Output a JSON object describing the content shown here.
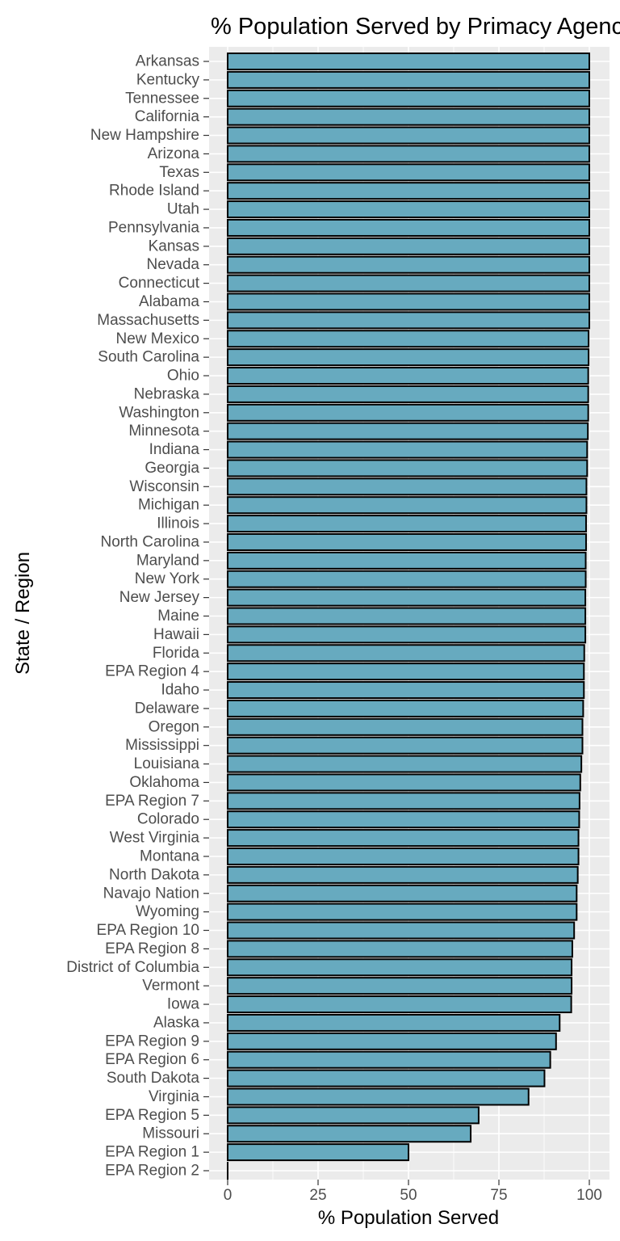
{
  "chart_data": {
    "type": "bar",
    "orientation": "horizontal",
    "title": "% Population Served by Primacy Agency",
    "xlabel": "% Population Served",
    "ylabel": "State / Region",
    "xlim": [
      -2.5,
      105
    ],
    "xticks": [
      0,
      25,
      50,
      75,
      100
    ],
    "grid": true,
    "legend": "none",
    "colors": {
      "bar_fill": "#67aabf",
      "bar_stroke": "#000000",
      "panel_bg": "#ebebeb",
      "grid": "#ffffff"
    },
    "categories": [
      "Arkansas",
      "Kentucky",
      "Tennessee",
      "California",
      "New Hampshire",
      "Arizona",
      "Texas",
      "Rhode Island",
      "Utah",
      "Pennsylvania",
      "Kansas",
      "Nevada",
      "Connecticut",
      "Alabama",
      "Massachusetts",
      "New Mexico",
      "South Carolina",
      "Ohio",
      "Nebraska",
      "Washington",
      "Minnesota",
      "Indiana",
      "Georgia",
      "Wisconsin",
      "Michigan",
      "Illinois",
      "North Carolina",
      "Maryland",
      "New York",
      "New Jersey",
      "Maine",
      "Hawaii",
      "Florida",
      "EPA Region 4",
      "Idaho",
      "Delaware",
      "Oregon",
      "Mississippi",
      "Louisiana",
      "Oklahoma",
      "EPA Region 7",
      "Colorado",
      "West Virginia",
      "Montana",
      "North Dakota",
      "Navajo Nation",
      "Wyoming",
      "EPA Region 10",
      "EPA Region 8",
      "District of Columbia",
      "Vermont",
      "Iowa",
      "Alaska",
      "EPA Region 9",
      "EPA Region 6",
      "South Dakota",
      "Virginia",
      "EPA Region 5",
      "Missouri",
      "EPA Region 1",
      "EPA Region 2"
    ],
    "values": [
      100,
      100,
      100,
      100,
      100,
      100,
      100,
      100,
      100,
      100,
      100,
      100,
      100,
      100,
      100,
      99.8,
      99.8,
      99.7,
      99.7,
      99.7,
      99.6,
      99.4,
      99.4,
      99.2,
      99.2,
      99.1,
      99.1,
      99.0,
      99.0,
      98.9,
      98.9,
      98.9,
      98.6,
      98.5,
      98.5,
      98.3,
      98.1,
      98.1,
      97.8,
      97.5,
      97.3,
      97.2,
      97.0,
      97.0,
      96.8,
      96.5,
      96.5,
      95.8,
      95.3,
      95.1,
      95.1,
      95.0,
      91.8,
      90.8,
      89.2,
      87.6,
      83.2,
      69.4,
      67.2,
      50.0,
      0
    ]
  }
}
